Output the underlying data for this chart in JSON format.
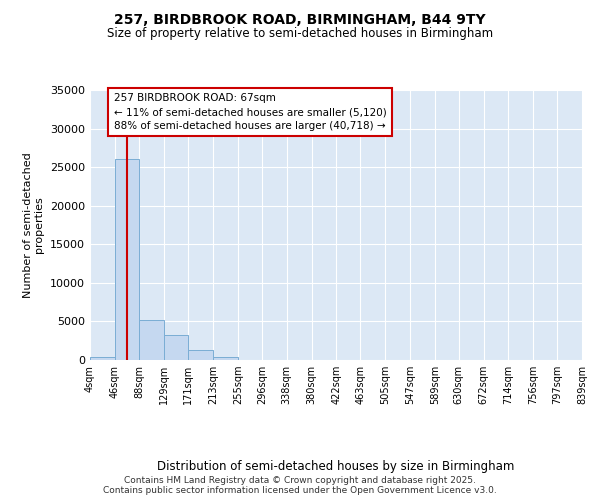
{
  "title1": "257, BIRDBROOK ROAD, BIRMINGHAM, B44 9TY",
  "title2": "Size of property relative to semi-detached houses in Birmingham",
  "xlabel": "Distribution of semi-detached houses by size in Birmingham",
  "ylabel": "Number of semi-detached\nproperties",
  "bin_edges": [
    4,
    46,
    88,
    129,
    171,
    213,
    255,
    296,
    338,
    380,
    422,
    463,
    505,
    547,
    589,
    630,
    672,
    714,
    756,
    797,
    839
  ],
  "bin_labels": [
    "4sqm",
    "46sqm",
    "88sqm",
    "129sqm",
    "171sqm",
    "213sqm",
    "255sqm",
    "296sqm",
    "338sqm",
    "380sqm",
    "422sqm",
    "463sqm",
    "505sqm",
    "547sqm",
    "589sqm",
    "630sqm",
    "672sqm",
    "714sqm",
    "756sqm",
    "797sqm",
    "839sqm"
  ],
  "bar_heights": [
    400,
    26100,
    5200,
    3200,
    1300,
    400,
    50,
    10,
    5,
    2,
    1,
    0,
    0,
    0,
    0,
    0,
    0,
    0,
    0,
    0
  ],
  "bar_color": "#c5d8f0",
  "bar_edge_color": "#7aadd4",
  "property_size": 67,
  "property_label": "257 BIRDBROOK ROAD: 67sqm",
  "pct_smaller": 11,
  "pct_larger": 88,
  "n_smaller": 5120,
  "n_larger": 40718,
  "vline_color": "#cc0000",
  "plot_bg_color": "#dce8f5",
  "fig_bg_color": "#ffffff",
  "ylim": [
    0,
    35000
  ],
  "yticks": [
    0,
    5000,
    10000,
    15000,
    20000,
    25000,
    30000,
    35000
  ],
  "footer1": "Contains HM Land Registry data © Crown copyright and database right 2025.",
  "footer2": "Contains public sector information licensed under the Open Government Licence v3.0."
}
